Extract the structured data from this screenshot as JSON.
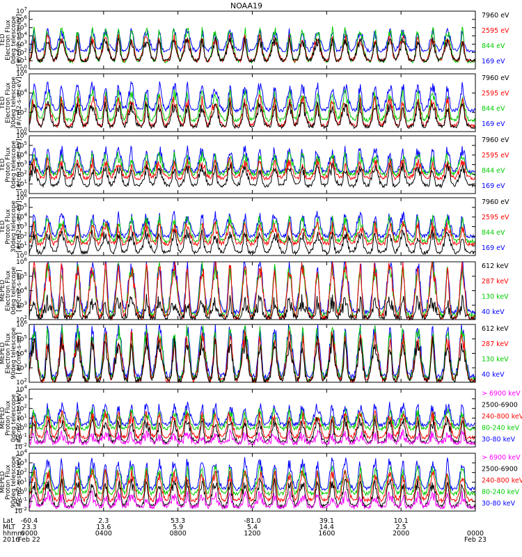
{
  "chart_data": {
    "type": "line",
    "title": "NOAA19",
    "x_range": [
      "2016-02-22 00:00",
      "2016-02-23 00:00"
    ],
    "panels": [
      {
        "ylabel": [
          "TED",
          "Electron Flux",
          "0deg telescope",
          "[#/cm2-s-str-eV]"
        ],
        "ylim": [
          1,
          10000000
        ],
        "ytick_exps": [
          0,
          1,
          2,
          3,
          4,
          5,
          6,
          7
        ],
        "series": [
          {
            "name": "7960 eV",
            "color": "#000000",
            "base": 1.0,
            "peak": 3.3
          },
          {
            "name": "2595 eV",
            "color": "#ff0000",
            "base": 1.0,
            "peak": 3.6
          },
          {
            "name": "844 eV",
            "color": "#00cc00",
            "base": 0.9,
            "peak": 4.6
          },
          {
            "name": "169 eV",
            "color": "#0000ff",
            "base": 2.2,
            "peak": 4.4
          }
        ]
      },
      {
        "ylabel": [
          "TED",
          "Electron Flux",
          "30deg telescope",
          "[#/cm2-s-str-eV]"
        ],
        "ylim": [
          1,
          1000000
        ],
        "ytick_exps": [
          0,
          2,
          4,
          6
        ],
        "series": [
          {
            "name": "7960 eV",
            "color": "#000000",
            "base": 0.5,
            "peak": 2.6
          },
          {
            "name": "2595 eV",
            "color": "#ff0000",
            "base": 0.6,
            "peak": 3.2
          },
          {
            "name": "844 eV",
            "color": "#00cc00",
            "base": 1.2,
            "peak": 3.8
          },
          {
            "name": "169 eV",
            "color": "#0000ff",
            "base": 2.2,
            "peak": 4.6
          }
        ]
      },
      {
        "ylabel": [
          "TED",
          "Proton Flux",
          "0deg telescope",
          "[#/cm2-s-str-eV]"
        ],
        "ylim": [
          1,
          1000000
        ],
        "ytick_exps": [
          0,
          1,
          2,
          3,
          4,
          5,
          6
        ],
        "series": [
          {
            "name": "7960 eV",
            "color": "#000000",
            "base": 0.8,
            "peak": 2.6
          },
          {
            "name": "2595 eV",
            "color": "#ff0000",
            "base": 1.6,
            "peak": 3.2
          },
          {
            "name": "844 eV",
            "color": "#00cc00",
            "base": 2.0,
            "peak": 3.8
          },
          {
            "name": "169 eV",
            "color": "#0000ff",
            "base": 2.2,
            "peak": 4.4
          }
        ]
      },
      {
        "ylabel": [
          "TED",
          "Proton Flux",
          "30deg telescope",
          "[#/cm2-s-str-eV]"
        ],
        "ylim": [
          1,
          1000000
        ],
        "ytick_exps": [
          0,
          1,
          2,
          3,
          4,
          5,
          6
        ],
        "series": [
          {
            "name": "7960 eV",
            "color": "#000000",
            "base": 0.3,
            "peak": 2.2
          },
          {
            "name": "2595 eV",
            "color": "#ff0000",
            "base": 1.2,
            "peak": 3.0
          },
          {
            "name": "844 eV",
            "color": "#00cc00",
            "base": 1.5,
            "peak": 3.6
          },
          {
            "name": "169 eV",
            "color": "#0000ff",
            "base": 2.0,
            "peak": 4.0
          }
        ]
      },
      {
        "ylabel": [
          "MEPED",
          "Electron Flux",
          "0deg telescope",
          "[#/cm2-s-str]"
        ],
        "ylim": [
          100,
          1000000
        ],
        "ytick_exps": [
          2,
          3,
          4,
          5,
          6
        ],
        "series": [
          {
            "name": "612 keV",
            "color": "#000000",
            "base": 2.1,
            "peak": 3.2
          },
          {
            "name": "287 keV",
            "color": "#ff0000",
            "base": 2.1,
            "peak": 5.6
          },
          {
            "name": "130 keV",
            "color": "#00cc00",
            "base": 2.3,
            "peak": 5.5
          },
          {
            "name": "40 keV",
            "color": "#0000ff",
            "base": 2.5,
            "peak": 5.8
          }
        ]
      },
      {
        "ylabel": [
          "MEPED",
          "Electron Flux",
          "90deg telescope",
          "[#/cm2-s-str]"
        ],
        "ylim": [
          100,
          1000000
        ],
        "ytick_exps": [
          2,
          3,
          4,
          5,
          6
        ],
        "series": [
          {
            "name": "612 keV",
            "color": "#000000",
            "base": 2.1,
            "peak": 4.6
          },
          {
            "name": "287 keV",
            "color": "#ff0000",
            "base": 2.1,
            "peak": 5.0
          },
          {
            "name": "130 keV",
            "color": "#00cc00",
            "base": 2.2,
            "peak": 5.4
          },
          {
            "name": "40 keV",
            "color": "#0000ff",
            "base": 2.4,
            "peak": 5.6
          }
        ]
      },
      {
        "ylabel": [
          "MEPED",
          "Proton Flux",
          "0deg telescope",
          "[#/cm2-s-str-keV]"
        ],
        "ylim": [
          0.01,
          10000
        ],
        "ytick_exps": [
          -2,
          -1,
          0,
          1,
          2,
          3,
          4
        ],
        "series": [
          {
            "name": "> 6900 keV",
            "color": "#ff00ff",
            "base": -1.6,
            "peak": -0.8
          },
          {
            "name": "2500-6900",
            "color": "#000000",
            "base": -1.5,
            "peak": 0.5
          },
          {
            "name": "240-800 keV",
            "color": "#ff0000",
            "base": -1.0,
            "peak": 1.2
          },
          {
            "name": "80-240 keV",
            "color": "#00cc00",
            "base": -0.1,
            "peak": 1.5
          },
          {
            "name": "30-80 keV",
            "color": "#0000ff",
            "base": 0.3,
            "peak": 2.1
          }
        ]
      },
      {
        "ylabel": [
          "MEPED",
          "Proton Flux",
          "90deg telescope",
          "[#/cm2-s-str-keV]"
        ],
        "ylim": [
          0.01,
          10000
        ],
        "ytick_exps": [
          -2,
          -1,
          0,
          1,
          2,
          3,
          4
        ],
        "series": [
          {
            "name": "> 6900 keV",
            "color": "#ff00ff",
            "base": -1.6,
            "peak": -0.5
          },
          {
            "name": "2500-6900",
            "color": "#000000",
            "base": -1.5,
            "peak": 0.8
          },
          {
            "name": "240-800 keV",
            "color": "#ff0000",
            "base": -0.9,
            "peak": 1.8
          },
          {
            "name": "80-240 keV",
            "color": "#00cc00",
            "base": -0.2,
            "peak": 2.2
          },
          {
            "name": "30-80 keV",
            "color": "#0000ff",
            "base": 0.3,
            "peak": 3.0
          }
        ]
      }
    ],
    "ephemeris": {
      "labels": [
        "Lat",
        "MLT",
        "hhmm",
        "2016"
      ],
      "columns": [
        {
          "hour": 0,
          "lat": "-60.4",
          "mlt": "23.3",
          "hhmm": "0000",
          "date": "Feb 22"
        },
        {
          "hour": 4,
          "lat": "2.3",
          "mlt": "13.6",
          "hhmm": "0400",
          "date": ""
        },
        {
          "hour": 8,
          "lat": "53.3",
          "mlt": "5.9",
          "hhmm": "0800",
          "date": ""
        },
        {
          "hour": 12,
          "lat": "-81.0",
          "mlt": "5.4",
          "hhmm": "1200",
          "date": ""
        },
        {
          "hour": 16,
          "lat": "39.1",
          "mlt": "14.4",
          "hhmm": "1600",
          "date": ""
        },
        {
          "hour": 20,
          "lat": "10.1",
          "mlt": "2.5",
          "hhmm": "2000",
          "date": ""
        },
        {
          "hour": 24,
          "lat": "",
          "mlt": "",
          "hhmm": "0000",
          "date": "Feb 23"
        }
      ]
    },
    "orbit_peak_hours": [
      0.25,
      1.0,
      1.75,
      2.6,
      3.4,
      4.1,
      4.8,
      5.5,
      6.3,
      7.0,
      7.8,
      8.5,
      9.3,
      10.0,
      10.8,
      11.6,
      12.4,
      13.2,
      14.0,
      14.7,
      15.5,
      16.3,
      17.0,
      17.8,
      18.6,
      19.4,
      20.1,
      20.9,
      21.7,
      22.5,
      23.3
    ]
  }
}
